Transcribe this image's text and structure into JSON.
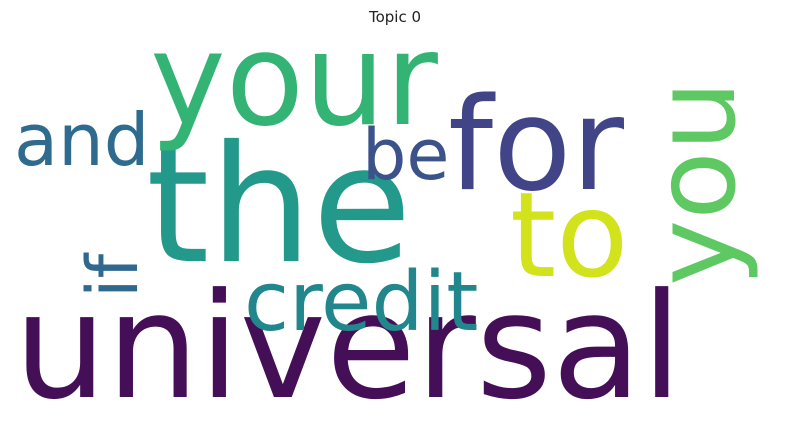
{
  "title": "Topic 0",
  "words": [
    {
      "text": "universal",
      "color": "#440f57",
      "rotated": false
    },
    {
      "text": "the",
      "color": "#23998b",
      "rotated": false
    },
    {
      "text": "your",
      "color": "#33b374",
      "rotated": false
    },
    {
      "text": "for",
      "color": "#414487",
      "rotated": false
    },
    {
      "text": "you",
      "color": "#5ec962",
      "rotated": true
    },
    {
      "text": "to",
      "color": "#d2e21b",
      "rotated": false
    },
    {
      "text": "credit",
      "color": "#21878d",
      "rotated": false
    },
    {
      "text": "and",
      "color": "#2e6b8e",
      "rotated": false
    },
    {
      "text": "be",
      "color": "#3b528b",
      "rotated": false
    },
    {
      "text": "if",
      "color": "#31688e",
      "rotated": true
    }
  ]
}
